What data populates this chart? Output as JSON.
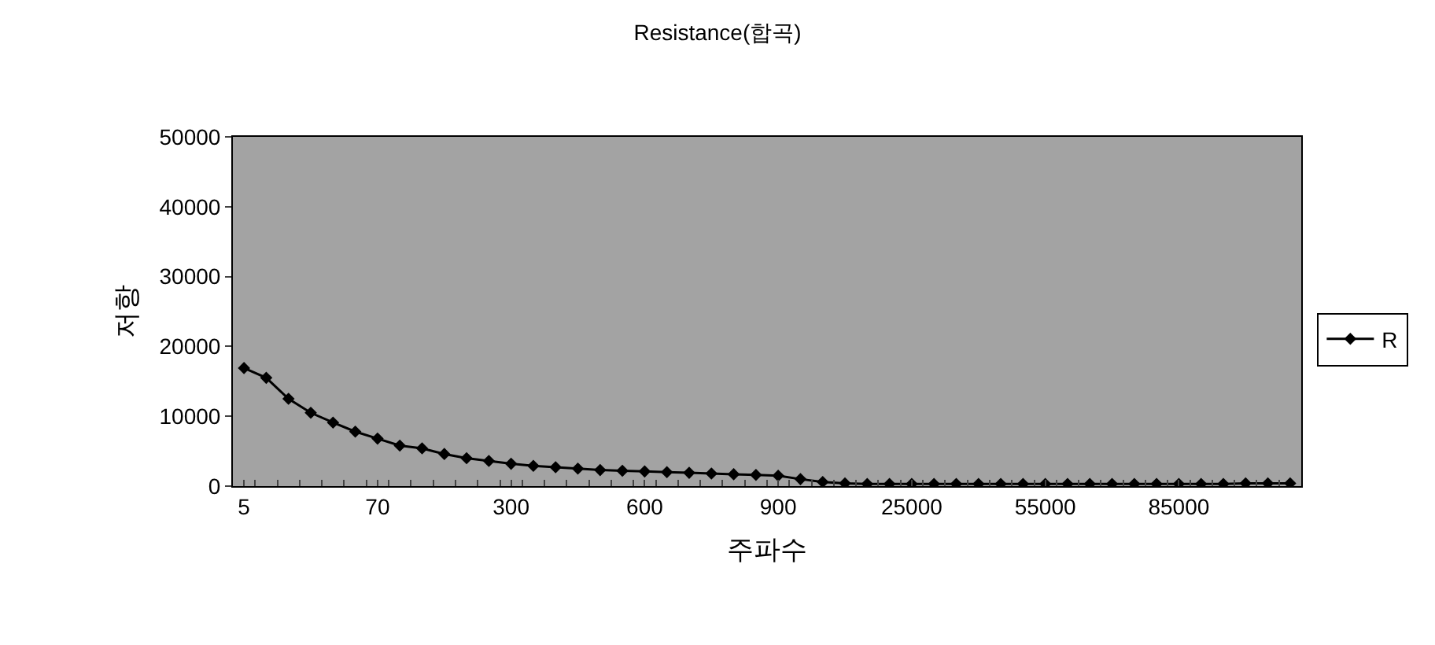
{
  "chart_data": {
    "type": "line",
    "title": "Resistance(합곡)",
    "xlabel": "주파수",
    "ylabel": "저항",
    "categories": [
      "5",
      null,
      null,
      null,
      null,
      null,
      "70",
      null,
      null,
      null,
      null,
      null,
      "300",
      null,
      null,
      null,
      null,
      null,
      "600",
      null,
      null,
      null,
      null,
      null,
      "900",
      null,
      null,
      null,
      null,
      null,
      "25000",
      null,
      null,
      null,
      null,
      null,
      "55000",
      null,
      null,
      null,
      null,
      null,
      "85000",
      null,
      null,
      null,
      null,
      null
    ],
    "series": [
      {
        "name": "R",
        "color": "#000000",
        "values": [
          16900,
          15500,
          12500,
          10500,
          9100,
          7800,
          6800,
          5800,
          5400,
          4600,
          4000,
          3600,
          3200,
          2900,
          2700,
          2500,
          2300,
          2200,
          2100,
          2000,
          1900,
          1800,
          1700,
          1600,
          1500,
          1000,
          600,
          400,
          300,
          300,
          300,
          300,
          300,
          300,
          300,
          300,
          300,
          300,
          300,
          300,
          300,
          300,
          300,
          300,
          300,
          400,
          400,
          400
        ]
      }
    ],
    "ylim": [
      0,
      50000
    ],
    "yticks": [
      0,
      10000,
      20000,
      30000,
      40000,
      50000
    ],
    "grid": false,
    "legend": "right",
    "marker": "diamond",
    "line_style": "solid"
  }
}
